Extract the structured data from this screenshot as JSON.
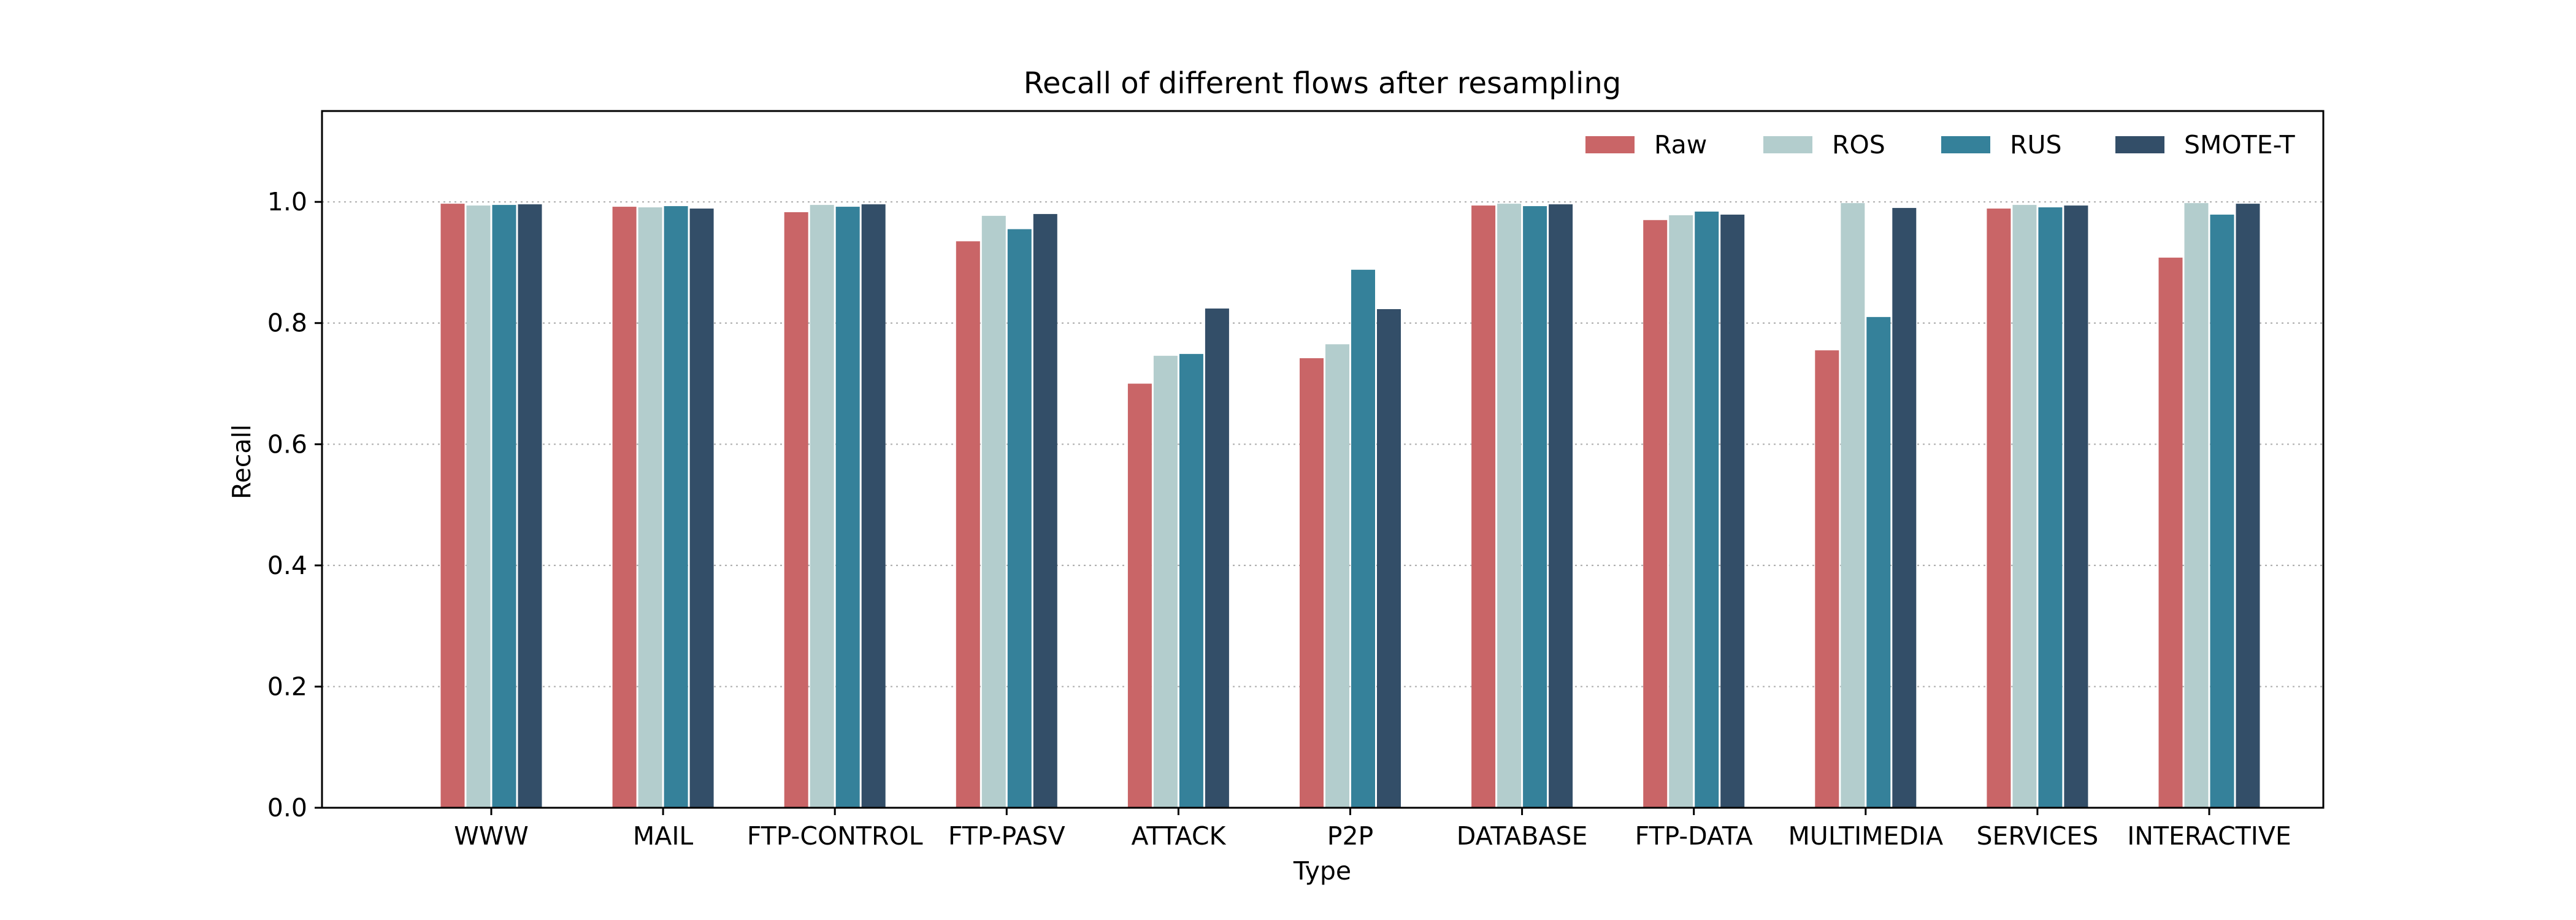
{
  "chart_data": {
    "type": "bar",
    "title": "Recall of different flows after resampling",
    "xlabel": "Type",
    "ylabel": "Recall",
    "ylim": [
      0,
      1.15
    ],
    "yticks": [
      "0.0",
      "0.2",
      "0.4",
      "0.6",
      "0.8",
      "1.0"
    ],
    "grid": true,
    "legend_position": "top-right",
    "categories": [
      "WWW",
      "MAIL",
      "FTP-CONTROL",
      "FTP-PASV",
      "ATTACK",
      "P2P",
      "DATABASE",
      "FTP-DATA",
      "MULTIMEDIA",
      "SERVICES",
      "INTERACTIVE"
    ],
    "series": [
      {
        "name": "Raw",
        "color": "#c96567",
        "values": [
          0.997,
          0.992,
          0.983,
          0.935,
          0.7,
          0.742,
          0.994,
          0.97,
          0.755,
          0.989,
          0.908
        ]
      },
      {
        "name": "ROS",
        "color": "#b3cdcd",
        "values": [
          0.994,
          0.991,
          0.995,
          0.977,
          0.746,
          0.765,
          0.997,
          0.978,
          0.998,
          0.995,
          0.998
        ]
      },
      {
        "name": "RUS",
        "color": "#35819a",
        "values": [
          0.995,
          0.993,
          0.992,
          0.955,
          0.749,
          0.888,
          0.993,
          0.984,
          0.81,
          0.991,
          0.979
        ]
      },
      {
        "name": "SMOTE-T",
        "color": "#334e68",
        "values": [
          0.996,
          0.989,
          0.996,
          0.98,
          0.824,
          0.823,
          0.996,
          0.979,
          0.99,
          0.994,
          0.997
        ]
      }
    ]
  }
}
